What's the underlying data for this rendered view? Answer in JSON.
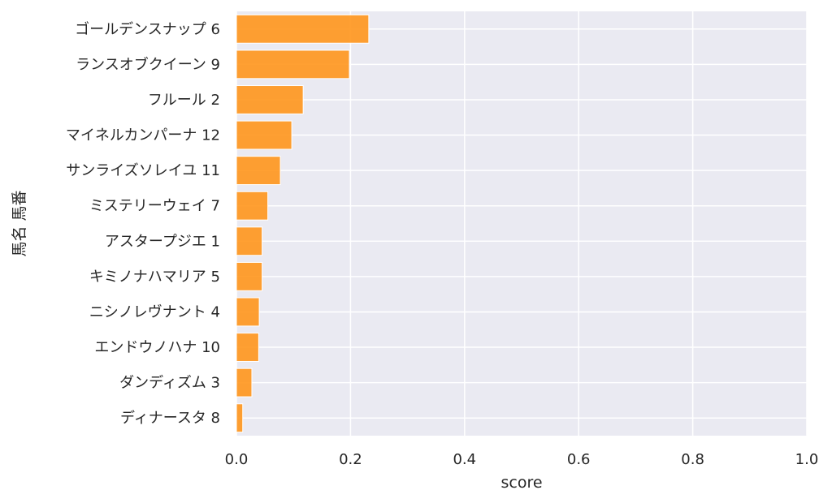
{
  "colors": {
    "plot_background": "#eaeaf2",
    "grid": "#ffffff",
    "bar": "#ff9316",
    "text": "#262626"
  },
  "chart_data": {
    "type": "bar",
    "orientation": "horizontal",
    "categories": [
      "ゴールデンスナップ 6",
      "ランスオブクイーン 9",
      "フルール 2",
      "マイネルカンパーナ 12",
      "サンライズソレイユ 11",
      "ミステリーウェイ 7",
      "アスタープジエ 1",
      "キミノナハマリア 5",
      "ニシノレヴナント 4",
      "エンドウノハナ 10",
      "ダンディズム 3",
      "ディナースタ 8"
    ],
    "values": [
      0.232,
      0.198,
      0.117,
      0.097,
      0.077,
      0.055,
      0.045,
      0.045,
      0.04,
      0.039,
      0.027,
      0.011
    ],
    "title": "",
    "xlabel": "score",
    "ylabel": "馬名 馬番",
    "xlim": [
      0.0,
      1.0
    ],
    "xticks": [
      "0.0",
      "0.2",
      "0.4",
      "0.6",
      "0.8",
      "1.0"
    ],
    "grid": true,
    "legend": "none"
  }
}
